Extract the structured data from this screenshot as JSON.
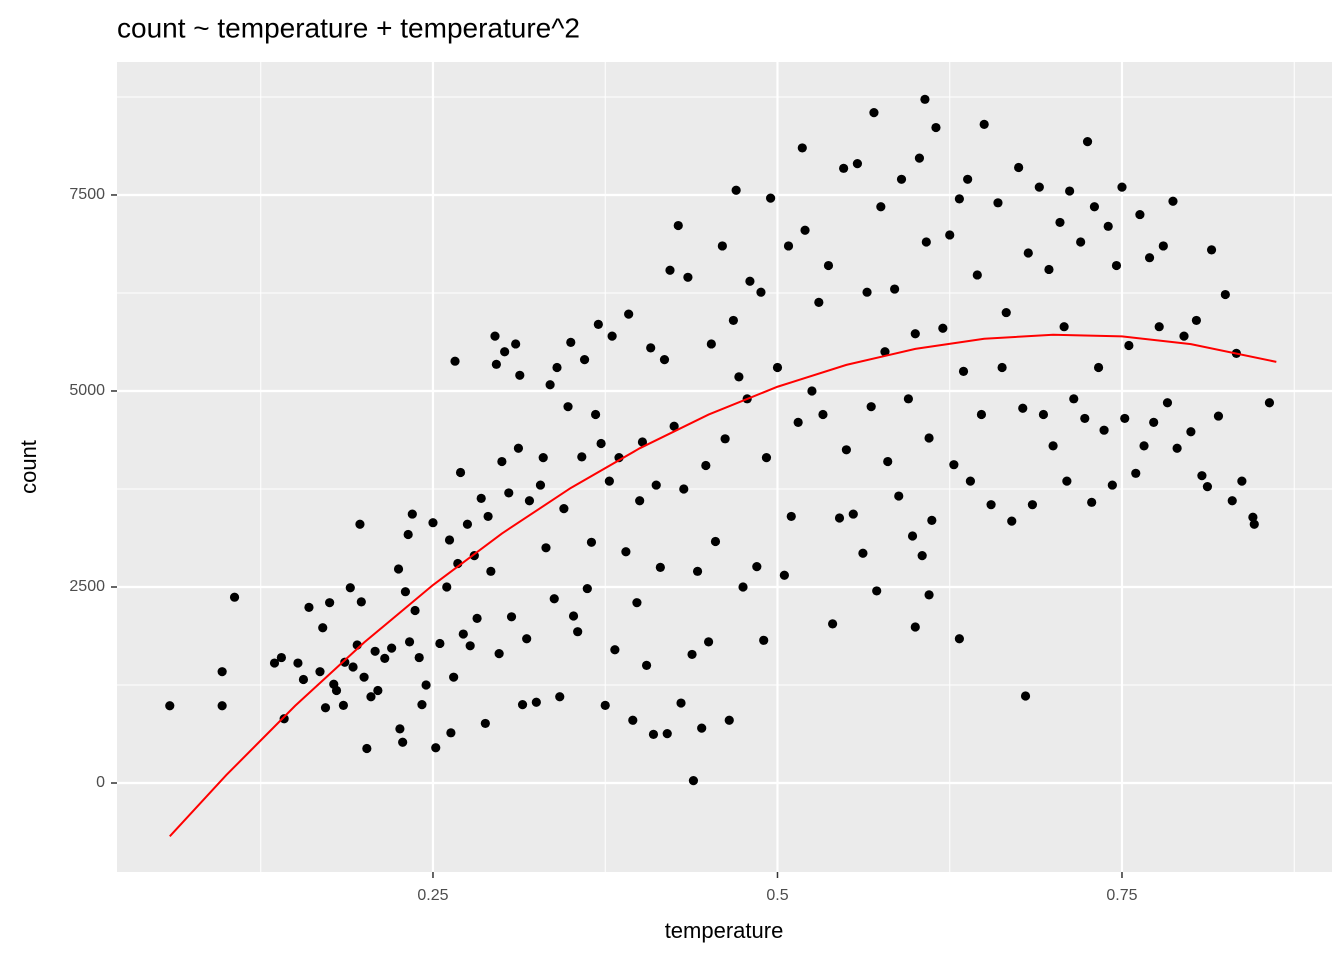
{
  "chart_data": {
    "type": "scatter",
    "title": "count ~ temperature + temperature^2",
    "x_label": "temperature",
    "y_label": "count",
    "xlim": [
      0.0207,
      0.9024
    ],
    "ylim": [
      -1135,
      9196
    ],
    "xticks": [
      0.25,
      0.5,
      0.75
    ],
    "yticks": [
      0,
      2500,
      5000,
      7500
    ],
    "x_minor_ticks": [
      0.125,
      0.375,
      0.625,
      0.875
    ],
    "y_minor_ticks": [
      1250,
      3750,
      6250,
      8750
    ],
    "grid": true,
    "points": {
      "color": "#000000",
      "x": [
        0.059,
        0.097,
        0.097,
        0.106,
        0.135,
        0.14,
        0.142,
        0.152,
        0.156,
        0.16,
        0.168,
        0.17,
        0.172,
        0.175,
        0.178,
        0.18,
        0.185,
        0.186,
        0.19,
        0.192,
        0.195,
        0.197,
        0.198,
        0.2,
        0.202,
        0.205,
        0.208,
        0.21,
        0.215,
        0.22,
        0.225,
        0.226,
        0.228,
        0.23,
        0.232,
        0.233,
        0.235,
        0.237,
        0.24,
        0.242,
        0.245,
        0.25,
        0.252,
        0.255,
        0.26,
        0.262,
        0.263,
        0.265,
        0.266,
        0.268,
        0.27,
        0.272,
        0.275,
        0.277,
        0.28,
        0.282,
        0.285,
        0.288,
        0.29,
        0.292,
        0.295,
        0.296,
        0.298,
        0.3,
        0.302,
        0.305,
        0.307,
        0.31,
        0.312,
        0.313,
        0.315,
        0.318,
        0.32,
        0.325,
        0.328,
        0.33,
        0.332,
        0.335,
        0.338,
        0.34,
        0.342,
        0.345,
        0.348,
        0.35,
        0.352,
        0.355,
        0.358,
        0.36,
        0.362,
        0.365,
        0.368,
        0.37,
        0.372,
        0.375,
        0.378,
        0.38,
        0.382,
        0.385,
        0.39,
        0.392,
        0.395,
        0.398,
        0.4,
        0.402,
        0.405,
        0.408,
        0.41,
        0.412,
        0.415,
        0.418,
        0.42,
        0.422,
        0.425,
        0.428,
        0.43,
        0.432,
        0.435,
        0.438,
        0.439,
        0.442,
        0.445,
        0.448,
        0.45,
        0.452,
        0.455,
        0.46,
        0.462,
        0.465,
        0.468,
        0.47,
        0.472,
        0.475,
        0.478,
        0.48,
        0.485,
        0.488,
        0.49,
        0.492,
        0.495,
        0.5,
        0.505,
        0.508,
        0.51,
        0.515,
        0.518,
        0.52,
        0.525,
        0.53,
        0.533,
        0.537,
        0.54,
        0.545,
        0.548,
        0.55,
        0.555,
        0.558,
        0.562,
        0.565,
        0.568,
        0.57,
        0.572,
        0.575,
        0.578,
        0.58,
        0.585,
        0.588,
        0.59,
        0.595,
        0.598,
        0.6,
        0.603,
        0.605,
        0.608,
        0.61,
        0.612,
        0.615,
        0.6,
        0.62,
        0.607,
        0.61,
        0.625,
        0.628,
        0.632,
        0.632,
        0.635,
        0.638,
        0.64,
        0.645,
        0.648,
        0.65,
        0.655,
        0.66,
        0.663,
        0.666,
        0.67,
        0.675,
        0.678,
        0.68,
        0.682,
        0.685,
        0.69,
        0.693,
        0.697,
        0.7,
        0.705,
        0.708,
        0.71,
        0.712,
        0.715,
        0.72,
        0.723,
        0.725,
        0.728,
        0.73,
        0.733,
        0.737,
        0.74,
        0.743,
        0.746,
        0.75,
        0.752,
        0.755,
        0.76,
        0.763,
        0.766,
        0.77,
        0.773,
        0.777,
        0.78,
        0.783,
        0.787,
        0.79,
        0.795,
        0.8,
        0.804,
        0.808,
        0.812,
        0.815,
        0.82,
        0.825,
        0.83,
        0.833,
        0.837,
        0.845,
        0.846,
        0.857
      ],
      "y": [
        985,
        985,
        1420,
        2370,
        1530,
        1600,
        820,
        1530,
        1320,
        2240,
        1420,
        1980,
        960,
        2300,
        1260,
        1180,
        990,
        1540,
        2490,
        1480,
        1760,
        3300,
        2310,
        1350,
        440,
        1100,
        1680,
        1180,
        1590,
        1720,
        2730,
        690,
        520,
        2440,
        3170,
        1800,
        3430,
        2200,
        1600,
        1000,
        1250,
        3320,
        450,
        1780,
        2500,
        3100,
        640,
        1350,
        5380,
        2800,
        3960,
        1900,
        3300,
        1750,
        2900,
        2100,
        3630,
        760,
        3400,
        2700,
        5700,
        5340,
        1650,
        4100,
        5500,
        3700,
        2120,
        5600,
        4270,
        5200,
        1000,
        1840,
        3600,
        1030,
        3800,
        4150,
        3000,
        5080,
        2350,
        5300,
        1100,
        3500,
        4800,
        5620,
        2130,
        1930,
        4160,
        5400,
        2480,
        3070,
        4700,
        5850,
        4330,
        990,
        3850,
        5700,
        1700,
        4150,
        2950,
        5980,
        800,
        2300,
        3600,
        4350,
        1500,
        5550,
        620,
        3800,
        2750,
        5400,
        630,
        6540,
        4550,
        7110,
        1020,
        3750,
        6450,
        1640,
        30,
        2700,
        700,
        4050,
        1800,
        5600,
        3080,
        6850,
        4390,
        800,
        5900,
        7560,
        5180,
        2500,
        4900,
        6400,
        2760,
        6260,
        1820,
        4150,
        7460,
        5300,
        2650,
        6850,
        3400,
        4600,
        8100,
        7050,
        5000,
        6130,
        4700,
        6600,
        2030,
        3380,
        7840,
        4250,
        3430,
        7900,
        2930,
        6260,
        4800,
        8550,
        2450,
        7350,
        5500,
        4100,
        6300,
        3660,
        7700,
        4900,
        3150,
        5730,
        7970,
        2900,
        6900,
        4400,
        3350,
        8360,
        1990,
        5800,
        8720,
        2400,
        6990,
        4060,
        7450,
        1840,
        5250,
        7700,
        3850,
        6480,
        4700,
        8400,
        3550,
        7400,
        5300,
        6000,
        3340,
        7850,
        4780,
        1110,
        6760,
        3550,
        7600,
        4700,
        6550,
        4300,
        7150,
        5820,
        3850,
        7550,
        4900,
        6900,
        4650,
        8180,
        3580,
        7350,
        5300,
        4500,
        7100,
        3800,
        6600,
        7600,
        4650,
        5580,
        3950,
        7250,
        4300,
        6700,
        4600,
        5820,
        6850,
        4850,
        7420,
        4270,
        5700,
        4480,
        5900,
        3920,
        3780,
        6800,
        4680,
        6230,
        3600,
        5480,
        3850,
        3390,
        3300,
        4850
      ]
    },
    "fit_line": {
      "color": "#ff0000",
      "x": [
        0.059,
        0.1,
        0.15,
        0.2,
        0.25,
        0.3,
        0.35,
        0.4,
        0.45,
        0.5,
        0.55,
        0.6,
        0.65,
        0.7,
        0.75,
        0.8,
        0.862
      ],
      "y": [
        -680,
        101,
        985,
        1792,
        2525,
        3182,
        3763,
        4269,
        4699,
        5054,
        5333,
        5537,
        5666,
        5718,
        5696,
        5598,
        5371
      ]
    }
  }
}
